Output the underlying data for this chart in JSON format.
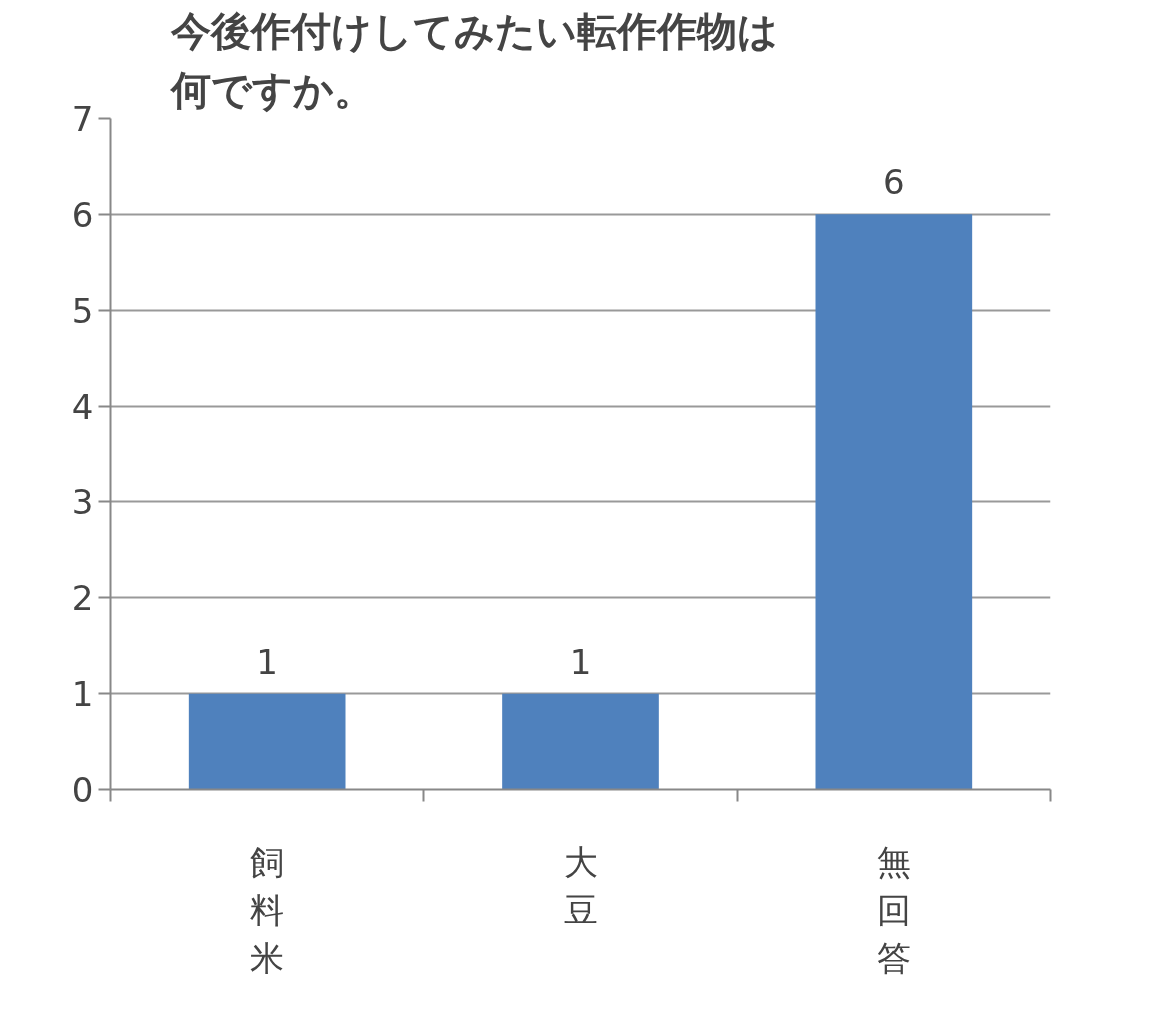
{
  "chart_data": {
    "type": "bar",
    "title": "今後作付けしてみたい転作作物は何ですか。",
    "categories": [
      "飼料米",
      "大豆",
      "無回答"
    ],
    "values": [
      1,
      1,
      6
    ],
    "color": "#4f81bd",
    "ylim": [
      0,
      7
    ],
    "yticks": [
      0,
      1,
      2,
      3,
      4,
      5,
      6,
      7
    ],
    "grid": "y",
    "data_labels": true
  }
}
